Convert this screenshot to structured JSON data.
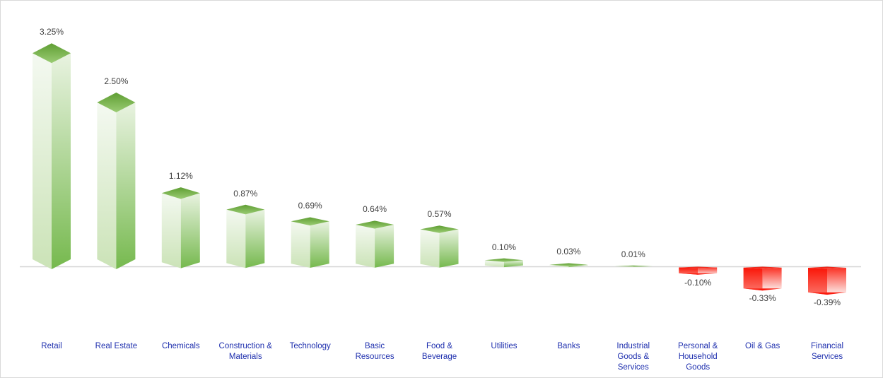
{
  "chart_data": {
    "type": "bar",
    "bar_style": "3d-box",
    "title": "",
    "xlabel": "",
    "ylabel": "",
    "unit": "%",
    "grid": false,
    "legend": false,
    "ylim": [
      -0.5,
      3.5
    ],
    "categories": [
      "Retail",
      "Real Estate",
      "Chemicals",
      "Construction &\nMaterials",
      "Technology",
      "Basic\nResources",
      "Food &\nBeverage",
      "Utilities",
      "Banks",
      "Industrial\nGoods &\nServices",
      "Personal &\nHousehold\nGoods",
      "Oil & Gas",
      "Financial\nServices"
    ],
    "values": [
      3.25,
      2.5,
      1.12,
      0.87,
      0.69,
      0.64,
      0.57,
      0.1,
      0.03,
      0.01,
      -0.1,
      -0.33,
      -0.39
    ],
    "value_labels": [
      "3.25%",
      "2.50%",
      "1.12%",
      "0.87%",
      "0.69%",
      "0.64%",
      "0.57%",
      "0.10%",
      "0.03%",
      "0.01%",
      "-0.10%",
      "-0.33%",
      "-0.39%"
    ],
    "colors": {
      "positive_cap_top": "#5f9e33",
      "positive_cap_bottom": "#9bcc74",
      "positive_left_top": "#f4f9f1",
      "positive_left_bottom": "#cbe3b7",
      "positive_right_top": "#e9f3e1",
      "positive_right_bottom": "#76b94e",
      "negative_cap_top": "#e31508",
      "negative_cap_bottom": "#fb4437",
      "negative_left_top": "#fa1507",
      "negative_left_bottom": "#fb7166",
      "negative_right_top": "#fb3124",
      "negative_right_bottom": "#fdf0ee",
      "negative_bottom_top": "#fc2b1d",
      "negative_bottom_bottom": "#fa0a00",
      "axis_line": "#d6d6d6",
      "value_label_color": "#404040",
      "category_label_color": "#1e2fae",
      "background": "#ffffff",
      "frame_border": "#d9d9d9"
    }
  }
}
